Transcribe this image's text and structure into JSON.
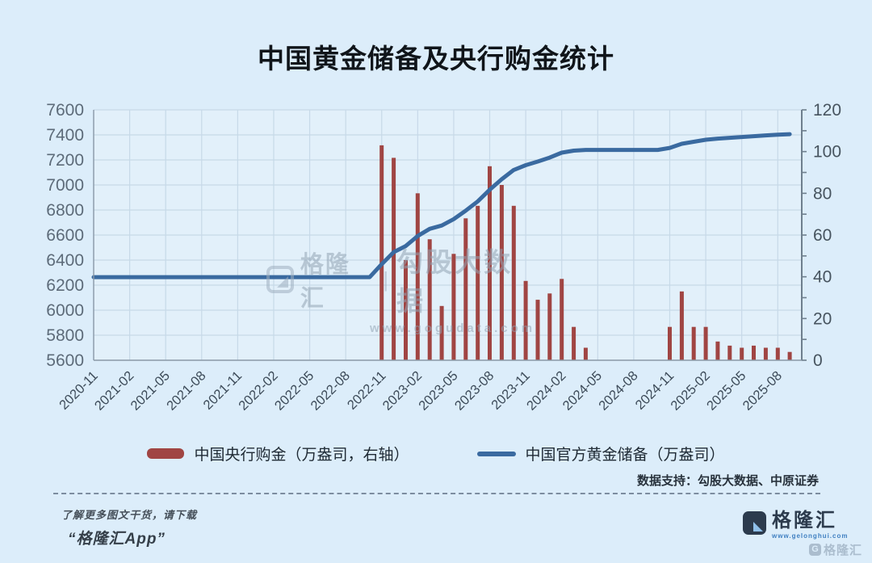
{
  "title": "中国黄金储备及央行购金统计",
  "legend": {
    "bar_label": "中国央行购金（万盎司，右轴）",
    "line_label": "中国官方黄金储备（万盎司）"
  },
  "watermark": {
    "brand": "格隆汇",
    "divider": "|",
    "name": "勾股大数据",
    "url": "www.gogudata.com"
  },
  "footer": {
    "data_support": "数据支持：勾股大数据、中原证券",
    "promo_line1": "了解更多图文干货，请下载",
    "promo_line2": "“格隆汇App”",
    "logo_text": "格隆汇",
    "logo_url": "www.gelonghui.com",
    "corner_watermark": "格隆汇",
    "corner_g": "G"
  },
  "colors": {
    "background": "#dcedfa",
    "plot_background": "#e2f0fa",
    "grid": "#c7d9e8",
    "axis": "#8b9aa8",
    "bar": "#a04543",
    "line": "#3a6aa0",
    "y_label": "#5d6b79",
    "x_label": "#3d4b59"
  },
  "chart_data": {
    "type": "combo",
    "title": "中国黄金储备及央行购金统计",
    "categories": [
      "2020-11",
      "2020-12",
      "2021-01",
      "2021-02",
      "2021-03",
      "2021-04",
      "2021-05",
      "2021-06",
      "2021-07",
      "2021-08",
      "2021-09",
      "2021-10",
      "2021-11",
      "2021-12",
      "2022-01",
      "2022-02",
      "2022-03",
      "2022-04",
      "2022-05",
      "2022-06",
      "2022-07",
      "2022-08",
      "2022-09",
      "2022-10",
      "2022-11",
      "2022-12",
      "2023-01",
      "2023-02",
      "2023-03",
      "2023-04",
      "2023-05",
      "2023-06",
      "2023-07",
      "2023-08",
      "2023-09",
      "2023-10",
      "2023-11",
      "2023-12",
      "2024-01",
      "2024-02",
      "2024-03",
      "2024-04",
      "2024-05",
      "2024-06",
      "2024-07",
      "2024-08",
      "2024-09",
      "2024-10",
      "2024-11",
      "2024-12",
      "2025-01",
      "2025-02",
      "2025-03",
      "2025-04",
      "2025-05",
      "2025-06",
      "2025-07",
      "2025-08",
      "2025-09"
    ],
    "x_tick_every": 3,
    "series": [
      {
        "name": "中国央行购金（万盎司，右轴）",
        "type": "bar",
        "axis": "right",
        "color": "#a04543",
        "values": [
          0,
          0,
          0,
          0,
          0,
          0,
          0,
          0,
          0,
          0,
          0,
          0,
          0,
          0,
          0,
          0,
          0,
          0,
          0,
          0,
          0,
          0,
          0,
          0,
          103,
          97,
          48,
          80,
          58,
          26,
          51,
          68,
          74,
          93,
          84,
          74,
          38,
          29,
          32,
          39,
          16,
          6,
          0,
          0,
          0,
          0,
          0,
          0,
          16,
          33,
          16,
          16,
          9,
          7,
          6,
          7,
          6,
          6,
          4
        ]
      },
      {
        "name": "中国官方黄金储备（万盎司）",
        "type": "line",
        "axis": "left",
        "color": "#3a6aa0",
        "values": [
          6264,
          6264,
          6264,
          6264,
          6264,
          6264,
          6264,
          6264,
          6264,
          6264,
          6264,
          6264,
          6264,
          6264,
          6264,
          6264,
          6264,
          6264,
          6264,
          6264,
          6264,
          6264,
          6264,
          6264,
          6367,
          6464,
          6512,
          6592,
          6650,
          6676,
          6727,
          6795,
          6869,
          6962,
          7046,
          7120,
          7158,
          7187,
          7219,
          7258,
          7274,
          7280,
          7280,
          7280,
          7280,
          7280,
          7280,
          7280,
          7296,
          7329,
          7345,
          7361,
          7370,
          7377,
          7383,
          7390,
          7396,
          7402,
          7406
        ]
      }
    ],
    "y_left": {
      "min": 5600,
      "max": 7600,
      "step": 200
    },
    "y_right": {
      "min": 0,
      "max": 120,
      "step": 20,
      "minor_step": 10
    },
    "grid": true,
    "legend_position": "bottom"
  }
}
